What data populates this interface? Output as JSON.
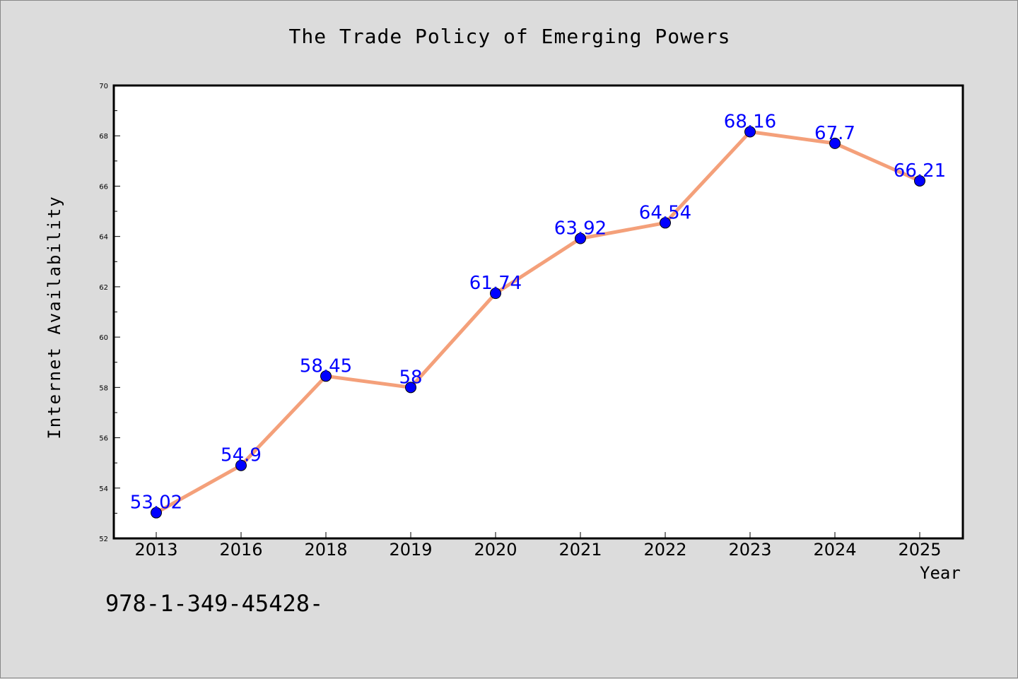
{
  "chart_data": {
    "type": "line",
    "title": "The Trade Policy of Emerging Powers",
    "xlabel": "Year",
    "ylabel": "Internet Availability",
    "categories": [
      "2013",
      "2016",
      "2018",
      "2019",
      "2020",
      "2021",
      "2022",
      "2023",
      "2024",
      "2025"
    ],
    "values": [
      53.02,
      54.9,
      58.45,
      58,
      61.74,
      63.92,
      64.54,
      68.16,
      67.7,
      66.21
    ],
    "data_labels": [
      "53.02",
      "54.9",
      "58.45",
      "58",
      "61.74",
      "63.92",
      "64.54",
      "68.16",
      "67.7",
      "66.21"
    ],
    "ylim": [
      52,
      70
    ],
    "yticks": [
      52,
      54,
      56,
      58,
      60,
      62,
      64,
      66,
      68,
      70
    ],
    "ytick_labels": [
      "52",
      "54",
      "56",
      "58",
      "60",
      "62",
      "64",
      "66",
      "68",
      "70"
    ],
    "grid": false,
    "legend": "none",
    "line_color": "#f4a07a",
    "marker_color": "#0000ff",
    "label_color": "#0000ff",
    "plot_background": "#ffffff",
    "page_background": "#dcdcdc"
  },
  "footer": {
    "code": "978-1-349-45428-"
  }
}
